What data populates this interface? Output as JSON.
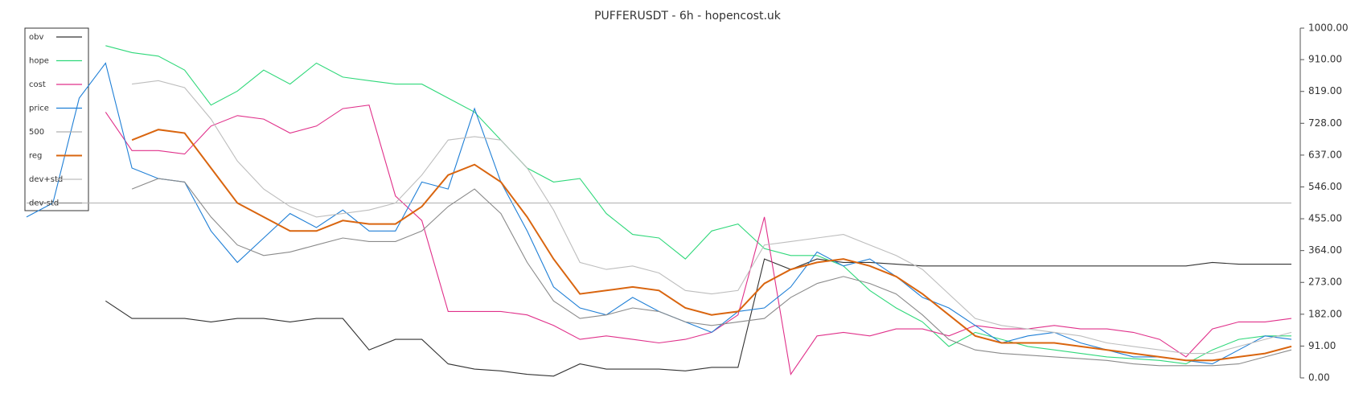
{
  "chart_data": {
    "type": "line",
    "title": "PUFFERUSDT - 6h - hopencost.uk",
    "ylim": [
      0,
      1000
    ],
    "yticks": [
      {
        "value": 0,
        "label": "0.00"
      },
      {
        "value": 91,
        "label": "91.00"
      },
      {
        "value": 182,
        "label": "182.00"
      },
      {
        "value": 273,
        "label": "273.00"
      },
      {
        "value": 364,
        "label": "364.00"
      },
      {
        "value": 455,
        "label": "455.00"
      },
      {
        "value": 546,
        "label": "546.00"
      },
      {
        "value": 637,
        "label": "637.00"
      },
      {
        "value": 728,
        "label": "728.00"
      },
      {
        "value": 819,
        "label": "819.00"
      },
      {
        "value": 910,
        "label": "910.00"
      },
      {
        "value": 1000,
        "label": "1000.00"
      }
    ],
    "legend": "upper-left",
    "series": [
      {
        "name": "obv",
        "color": "#333333",
        "values": [
          null,
          null,
          null,
          220,
          170,
          170,
          170,
          160,
          170,
          170,
          160,
          170,
          170,
          80,
          110,
          110,
          40,
          25,
          20,
          10,
          5,
          40,
          25,
          25,
          25,
          20,
          30,
          30,
          340,
          310,
          340,
          330,
          330,
          325,
          320,
          320,
          320,
          320,
          320,
          320,
          320,
          320,
          320,
          320,
          320,
          330,
          325,
          325,
          325
        ]
      },
      {
        "name": "hope",
        "color": "#2fd87a",
        "values": [
          null,
          null,
          null,
          950,
          930,
          920,
          880,
          780,
          820,
          880,
          840,
          900,
          860,
          850,
          840,
          840,
          800,
          760,
          680,
          600,
          560,
          570,
          470,
          410,
          400,
          340,
          420,
          440,
          370,
          350,
          350,
          320,
          250,
          200,
          160,
          90,
          130,
          110,
          90,
          80,
          70,
          60,
          55,
          50,
          40,
          80,
          110,
          120,
          120
        ]
      },
      {
        "name": "cost",
        "color": "#e0308a",
        "values": [
          null,
          null,
          null,
          760,
          650,
          650,
          640,
          720,
          750,
          740,
          700,
          720,
          770,
          780,
          520,
          450,
          190,
          190,
          190,
          180,
          150,
          110,
          120,
          110,
          100,
          110,
          130,
          180,
          460,
          10,
          120,
          130,
          120,
          140,
          140,
          120,
          150,
          140,
          140,
          150,
          140,
          140,
          130,
          110,
          60,
          140,
          160,
          160,
          170
        ]
      },
      {
        "name": "price",
        "color": "#1f7fd6",
        "values": [
          460,
          500,
          800,
          900,
          600,
          570,
          560,
          420,
          330,
          400,
          470,
          430,
          480,
          420,
          420,
          560,
          540,
          770,
          560,
          420,
          260,
          200,
          180,
          230,
          190,
          160,
          130,
          190,
          200,
          260,
          360,
          320,
          340,
          290,
          230,
          200,
          150,
          100,
          120,
          130,
          100,
          80,
          60,
          60,
          50,
          40,
          80,
          120,
          110
        ]
      },
      {
        "name": "500",
        "color": "#b0b0b0",
        "values": [
          500,
          500,
          500,
          500,
          500,
          500,
          500,
          500,
          500,
          500,
          500,
          500,
          500,
          500,
          500,
          500,
          500,
          500,
          500,
          500,
          500,
          500,
          500,
          500,
          500,
          500,
          500,
          500,
          500,
          500,
          500,
          500,
          500,
          500,
          500,
          500,
          500,
          500,
          500,
          500,
          500,
          500,
          500,
          500,
          500,
          500,
          500,
          500,
          500
        ]
      },
      {
        "name": "reg",
        "color": "#d9650f",
        "values": [
          null,
          null,
          null,
          null,
          680,
          710,
          700,
          600,
          500,
          460,
          420,
          420,
          450,
          440,
          440,
          490,
          580,
          610,
          560,
          460,
          340,
          240,
          250,
          260,
          250,
          200,
          180,
          190,
          270,
          310,
          330,
          340,
          320,
          290,
          240,
          180,
          120,
          100,
          100,
          100,
          90,
          80,
          70,
          60,
          50,
          50,
          60,
          70,
          90
        ]
      },
      {
        "name": "dev+std",
        "color": "#bdbdbd",
        "values": [
          null,
          null,
          null,
          null,
          840,
          850,
          830,
          740,
          620,
          540,
          490,
          460,
          470,
          480,
          500,
          580,
          680,
          690,
          680,
          600,
          480,
          330,
          310,
          320,
          300,
          250,
          240,
          250,
          380,
          390,
          400,
          410,
          380,
          350,
          310,
          240,
          170,
          150,
          140,
          130,
          120,
          100,
          90,
          80,
          70,
          70,
          90,
          110,
          130
        ]
      },
      {
        "name": "dev-std",
        "color": "#8a8a8a",
        "values": [
          null,
          null,
          null,
          null,
          540,
          570,
          560,
          460,
          380,
          350,
          360,
          380,
          400,
          390,
          390,
          420,
          490,
          540,
          470,
          330,
          220,
          170,
          180,
          200,
          190,
          160,
          150,
          160,
          170,
          230,
          270,
          290,
          270,
          240,
          180,
          110,
          80,
          70,
          65,
          60,
          55,
          50,
          40,
          35,
          35,
          35,
          40,
          60,
          80
        ]
      }
    ]
  }
}
